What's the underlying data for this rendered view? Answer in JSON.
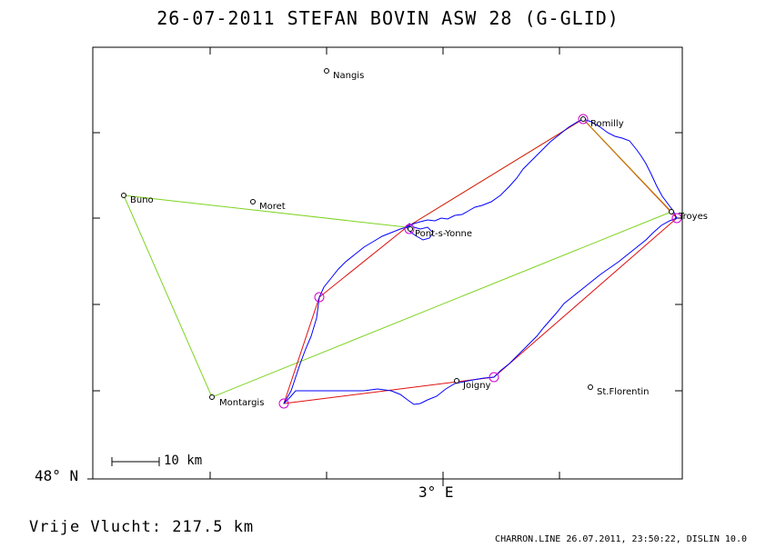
{
  "title": "26-07-2011   STEFAN BOVIN   ASW 28 (G-GLID)",
  "axes": {
    "lat_label": "48° N",
    "lon_label": "3° E"
  },
  "scale_bar_label": "10 km",
  "distance_label": "Vrije Vlucht:  217.5 km",
  "footer": "CHARRON.LINE 26.07.2011, 23:50:22, DISLIN 10.0",
  "colors": {
    "declared_task": "#7ed321",
    "flown_task": "#e01010",
    "track": "#0000ff",
    "turnpoint_circle": "#d000d0"
  },
  "towns": [
    {
      "name": "Nangis"
    },
    {
      "name": "Romilly"
    },
    {
      "name": "Buno"
    },
    {
      "name": "Moret"
    },
    {
      "name": "Troyes"
    },
    {
      "name": "Pont-s-Yonne"
    },
    {
      "name": "Montargis"
    },
    {
      "name": "Joigny"
    },
    {
      "name": "St.Florentin"
    }
  ]
}
